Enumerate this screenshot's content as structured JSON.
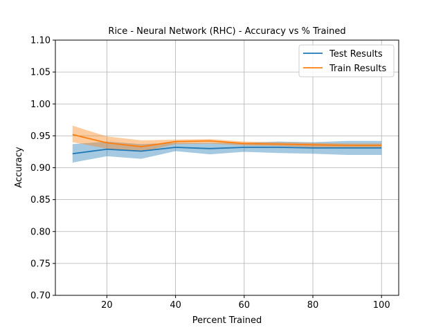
{
  "chart_data": {
    "type": "line",
    "title": "Rice - Neural Network (RHC) - Accuracy vs % Trained",
    "xlabel": "Percent Trained",
    "ylabel": "Accuracy",
    "xlim": [
      5,
      105
    ],
    "ylim": [
      0.7,
      1.1
    ],
    "xticks": [
      20,
      40,
      60,
      80,
      100
    ],
    "yticks": [
      0.7,
      0.75,
      0.8,
      0.85,
      0.9,
      0.95,
      1.0,
      1.05,
      1.1
    ],
    "ytick_labels": [
      "0.70",
      "0.75",
      "0.80",
      "0.85",
      "0.90",
      "0.95",
      "1.00",
      "1.05",
      "1.10"
    ],
    "grid": true,
    "legend_position": "top-right",
    "x": [
      10,
      20,
      30,
      40,
      50,
      60,
      70,
      80,
      90,
      100
    ],
    "series": [
      {
        "name": "Test Results",
        "color": "#1f77b4",
        "values": [
          0.922,
          0.929,
          0.926,
          0.932,
          0.93,
          0.932,
          0.932,
          0.931,
          0.931,
          0.931
        ],
        "lower": [
          0.908,
          0.918,
          0.914,
          0.926,
          0.921,
          0.925,
          0.923,
          0.922,
          0.92,
          0.92
        ],
        "upper": [
          0.937,
          0.941,
          0.937,
          0.939,
          0.939,
          0.939,
          0.941,
          0.94,
          0.942,
          0.942
        ]
      },
      {
        "name": "Train Results",
        "color": "#ff7f0e",
        "values": [
          0.952,
          0.939,
          0.933,
          0.941,
          0.942,
          0.938,
          0.937,
          0.936,
          0.935,
          0.935
        ],
        "lower": [
          0.94,
          0.93,
          0.925,
          0.937,
          0.938,
          0.935,
          0.934,
          0.932,
          0.932,
          0.932
        ],
        "upper": [
          0.966,
          0.949,
          0.943,
          0.944,
          0.945,
          0.941,
          0.94,
          0.939,
          0.938,
          0.938
        ]
      }
    ]
  }
}
